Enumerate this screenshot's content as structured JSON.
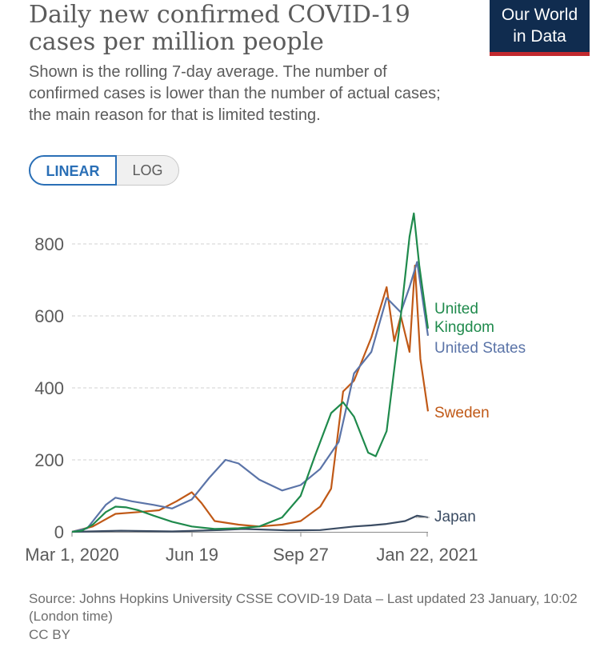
{
  "header": {
    "title": "Daily new confirmed COVID-19 cases per million people",
    "subtitle": "Shown is the rolling 7-day average. The number of confirmed cases is lower than the number of actual cases; the main reason for that is limited testing.",
    "logo_line1": "Our World",
    "logo_line2": "in Data"
  },
  "toggle": {
    "linear": "LINEAR",
    "log": "LOG",
    "selected": "LINEAR"
  },
  "footer": {
    "source": "Source: Johns Hopkins University CSSE COVID-19 Data – Last updated 23 January, 10:02 (London time)",
    "license": "CC BY"
  },
  "colors": {
    "united_kingdom": "#1f8a4c",
    "united_states": "#5b74a8",
    "sweden": "#c05917",
    "japan": "#3b4c63",
    "grid": "#d0d0d0",
    "axis_text": "#5b5b5b"
  },
  "chart_data": {
    "type": "line",
    "title": "Daily new confirmed COVID-19 cases per million people",
    "x_ticks": [
      "Mar 1, 2020",
      "Jun 19",
      "Sep 27",
      "Jan 22, 2021"
    ],
    "y_ticks": [
      "0",
      "200",
      "400",
      "600",
      "800"
    ],
    "xlim": [
      "2020-03-01",
      "2021-01-22"
    ],
    "ylim": [
      0,
      880
    ],
    "grid": "horizontal dashed",
    "legend": "labels at line ends (right)",
    "series": [
      {
        "name": "United Kingdom",
        "label_lines": [
          "United",
          "Kingdom"
        ],
        "points": [
          [
            "2020-03-01",
            0
          ],
          [
            "2020-03-10",
            3
          ],
          [
            "2020-03-20",
            20
          ],
          [
            "2020-04-01",
            55
          ],
          [
            "2020-04-10",
            70
          ],
          [
            "2020-04-20",
            68
          ],
          [
            "2020-05-01",
            60
          ],
          [
            "2020-05-15",
            45
          ],
          [
            "2020-06-01",
            28
          ],
          [
            "2020-06-19",
            15
          ],
          [
            "2020-07-10",
            8
          ],
          [
            "2020-08-01",
            10
          ],
          [
            "2020-08-20",
            15
          ],
          [
            "2020-09-10",
            40
          ],
          [
            "2020-09-27",
            100
          ],
          [
            "2020-10-10",
            210
          ],
          [
            "2020-10-25",
            330
          ],
          [
            "2020-11-05",
            360
          ],
          [
            "2020-11-15",
            320
          ],
          [
            "2020-11-28",
            220
          ],
          [
            "2020-12-05",
            210
          ],
          [
            "2020-12-15],",
            280
          ],
          [
            "2020-12-28",
            600
          ],
          [
            "2021-01-05",
            820
          ],
          [
            "2021-01-09",
            885
          ],
          [
            "2021-01-14",
            740
          ],
          [
            "2021-01-22",
            565
          ]
        ]
      },
      {
        "name": "United States",
        "label_lines": [
          "United States"
        ],
        "points": [
          [
            "2020-03-01",
            0
          ],
          [
            "2020-03-15",
            10
          ],
          [
            "2020-04-01",
            75
          ],
          [
            "2020-04-10",
            95
          ],
          [
            "2020-04-25",
            85
          ],
          [
            "2020-05-15",
            75
          ],
          [
            "2020-06-01",
            65
          ],
          [
            "2020-06-19",
            90
          ],
          [
            "2020-07-05",
            150
          ],
          [
            "2020-07-20",
            200
          ],
          [
            "2020-08-01",
            190
          ],
          [
            "2020-08-20",
            145
          ],
          [
            "2020-09-10",
            115
          ],
          [
            "2020-09-27",
            130
          ],
          [
            "2020-10-15",
            175
          ],
          [
            "2020-11-01",
            250
          ],
          [
            "2020-11-15",
            440
          ],
          [
            "2020-12-01",
            500
          ],
          [
            "2020-12-15",
            650
          ],
          [
            "2020-12-28",
            610
          ],
          [
            "2021-01-05",
            680
          ],
          [
            "2021-01-12",
            750
          ],
          [
            "2021-01-22",
            545
          ]
        ]
      },
      {
        "name": "Sweden",
        "label_lines": [
          "Sweden"
        ],
        "points": [
          [
            "2020-03-01",
            0
          ],
          [
            "2020-03-20",
            15
          ],
          [
            "2020-04-10",
            50
          ],
          [
            "2020-05-01",
            55
          ],
          [
            "2020-05-20",
            60
          ],
          [
            "2020-06-05",
            85
          ],
          [
            "2020-06-19",
            110
          ],
          [
            "2020-06-28",
            80
          ],
          [
            "2020-07-10",
            30
          ],
          [
            "2020-08-01",
            20
          ],
          [
            "2020-08-20",
            15
          ],
          [
            "2020-09-10",
            20
          ],
          [
            "2020-09-27",
            30
          ],
          [
            "2020-10-15",
            70
          ],
          [
            "2020-10-25",
            120
          ],
          [
            "2020-11-05",
            390
          ],
          [
            "2020-11-15",
            420
          ],
          [
            "2020-12-01",
            540
          ],
          [
            "2020-12-15",
            680
          ],
          [
            "2020-12-22",
            530
          ],
          [
            "2020-12-28",
            600
          ],
          [
            "2021-01-05",
            500
          ],
          [
            "2021-01-10",
            740
          ],
          [
            "2021-01-15",
            480
          ],
          [
            "2021-01-22",
            335
          ]
        ]
      },
      {
        "name": "Japan",
        "label_lines": [
          "Japan"
        ],
        "points": [
          [
            "2020-03-01",
            0
          ],
          [
            "2020-04-15",
            3
          ],
          [
            "2020-06-01",
            1
          ],
          [
            "2020-07-15",
            5
          ],
          [
            "2020-08-05",
            8
          ],
          [
            "2020-09-15",
            4
          ],
          [
            "2020-10-15",
            5
          ],
          [
            "2020-11-15",
            15
          ],
          [
            "2020-12-01",
            18
          ],
          [
            "2020-12-15",
            22
          ],
          [
            "2021-01-01",
            30
          ],
          [
            "2021-01-12",
            45
          ],
          [
            "2021-01-22",
            40
          ]
        ]
      }
    ]
  }
}
